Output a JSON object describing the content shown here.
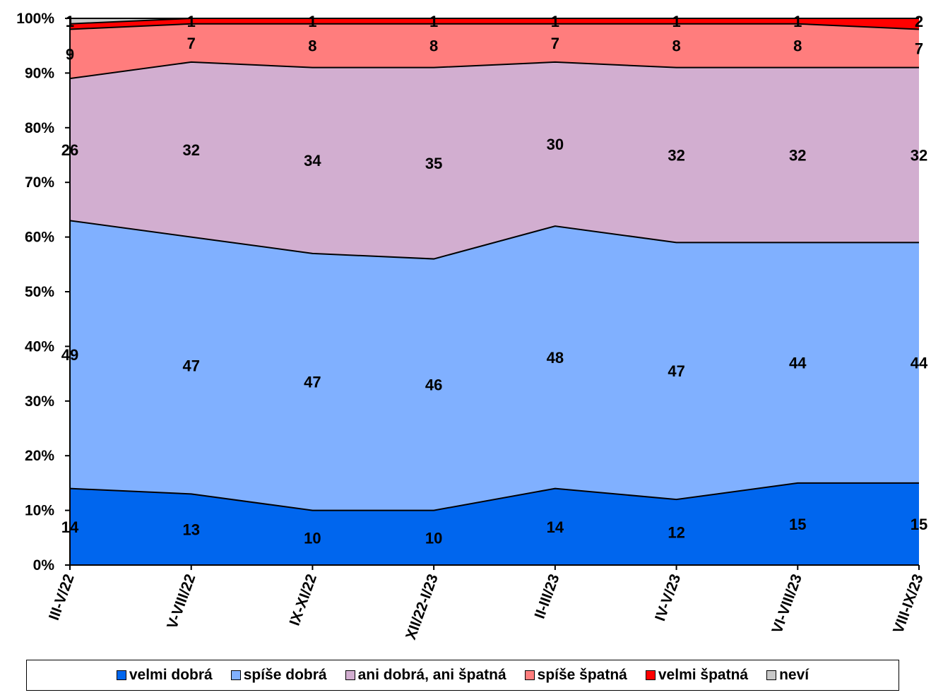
{
  "chart_data": {
    "type": "area",
    "stacked": "percent",
    "categories": [
      "III-V/22",
      "V-VIII/22",
      "IX-XI/22",
      "XII/22-I/23",
      "II-III/23",
      "IV-V/23",
      "VI-VIII/23",
      "VIII-IX/23"
    ],
    "series": [
      {
        "name": "velmi dobrá",
        "color": "#0066ee",
        "values": [
          14,
          13,
          10,
          10,
          14,
          12,
          15,
          15
        ]
      },
      {
        "name": "spíše dobrá",
        "color": "#80b0ff",
        "values": [
          49,
          47,
          47,
          46,
          48,
          47,
          44,
          44
        ]
      },
      {
        "name": "ani dobrá, ani špatná",
        "color": "#d2aed0",
        "values": [
          26,
          32,
          34,
          35,
          30,
          32,
          32,
          32
        ]
      },
      {
        "name": "spíše špatná",
        "color": "#ff7d7d",
        "values": [
          9,
          7,
          8,
          8,
          7,
          8,
          8,
          7
        ]
      },
      {
        "name": "velmi špatná",
        "color": "#ff0000",
        "values": [
          1,
          1,
          1,
          1,
          1,
          1,
          1,
          2
        ]
      },
      {
        "name": "neví",
        "color": "#c8c8c8",
        "values": [
          1,
          0,
          0,
          0,
          0,
          0,
          0,
          0
        ]
      }
    ],
    "yticks": [
      "0%",
      "10%",
      "20%",
      "30%",
      "40%",
      "50%",
      "60%",
      "70%",
      "80%",
      "90%",
      "100%"
    ],
    "ylim": [
      0,
      100
    ],
    "legend_position": "bottom",
    "grid": false,
    "xlabel": "",
    "ylabel": ""
  }
}
